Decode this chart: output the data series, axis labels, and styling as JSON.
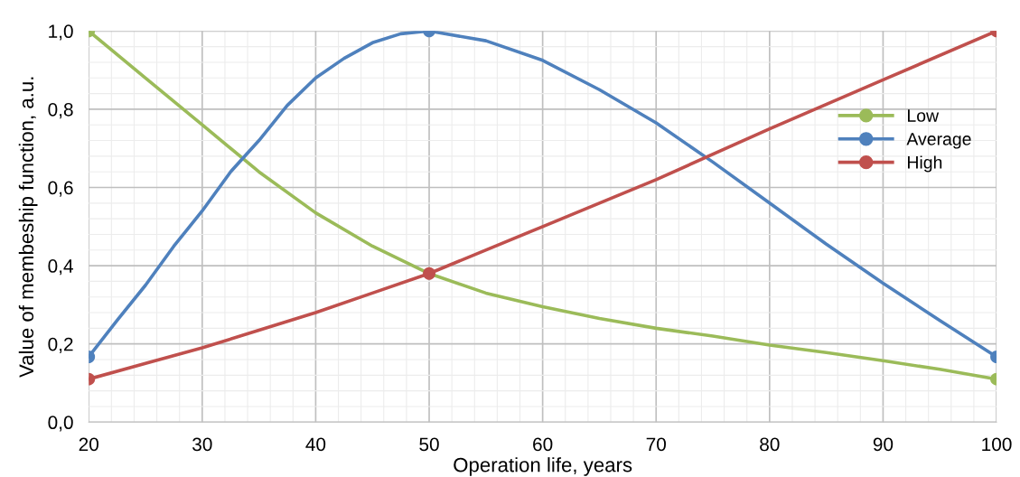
{
  "chart_data": {
    "type": "line",
    "xlabel": "Operation life, years",
    "ylabel": "Value of membeship function, a.u.",
    "series": [
      {
        "name": "Low",
        "color": "#9bbb59",
        "x": [
          20,
          25,
          30,
          35,
          40,
          45,
          50,
          55,
          60,
          65,
          70,
          75,
          80,
          85,
          90,
          95,
          100
        ],
        "values": [
          1.0,
          0.88,
          0.76,
          0.64,
          0.535,
          0.45,
          0.38,
          0.33,
          0.295,
          0.265,
          0.24,
          0.22,
          0.197,
          0.178,
          0.157,
          0.135,
          0.11
        ]
      },
      {
        "name": "Average",
        "color": "#4f81bd",
        "x": [
          20,
          22.5,
          25,
          27.5,
          30,
          32.5,
          35,
          37.5,
          40,
          42.5,
          45,
          47.5,
          50,
          55,
          60,
          65,
          70,
          75,
          80,
          85,
          90,
          95,
          100
        ],
        "values": [
          0.167,
          0.26,
          0.35,
          0.45,
          0.54,
          0.64,
          0.72,
          0.81,
          0.88,
          0.93,
          0.97,
          0.993,
          1.0,
          0.975,
          0.925,
          0.85,
          0.765,
          0.665,
          0.56,
          0.455,
          0.355,
          0.26,
          0.167
        ]
      },
      {
        "name": "High",
        "color": "#c0504d",
        "x": [
          20,
          25,
          30,
          35,
          40,
          45,
          50,
          60,
          70,
          80,
          90,
          100
        ],
        "values": [
          0.11,
          0.15,
          0.19,
          0.235,
          0.28,
          0.33,
          0.38,
          0.5,
          0.62,
          0.75,
          0.875,
          1.0
        ]
      },
      {
        "type": "scatter",
        "marker": "circle",
        "color": "#9bbb59",
        "x": [
          20,
          50,
          100
        ],
        "values": [
          1.0,
          null,
          0.11
        ]
      },
      {
        "type": "scatter",
        "marker": "circle",
        "color": "#4f81bd",
        "x": [
          20,
          50,
          100
        ],
        "values": [
          0.167,
          1.0,
          0.167
        ]
      },
      {
        "type": "scatter",
        "marker": "circle",
        "color": "#c0504d",
        "x": [
          20,
          50,
          100
        ],
        "values": [
          0.11,
          0.38,
          1.0
        ]
      }
    ],
    "xlim": [
      20,
      100
    ],
    "xticks": [
      20,
      30,
      40,
      50,
      60,
      70,
      80,
      90,
      100
    ],
    "ylim": [
      0,
      1
    ],
    "yticks": [
      {
        "value": 0,
        "label": "0,0"
      },
      {
        "value": 0.2,
        "label": "0,2"
      },
      {
        "value": 0.4,
        "label": "0,4"
      },
      {
        "value": 0.6,
        "label": "0,6"
      },
      {
        "value": 0.8,
        "label": "0,8"
      },
      {
        "value": 1,
        "label": "1,0"
      }
    ],
    "grid": true,
    "legend": "right",
    "line_style": "solid"
  }
}
